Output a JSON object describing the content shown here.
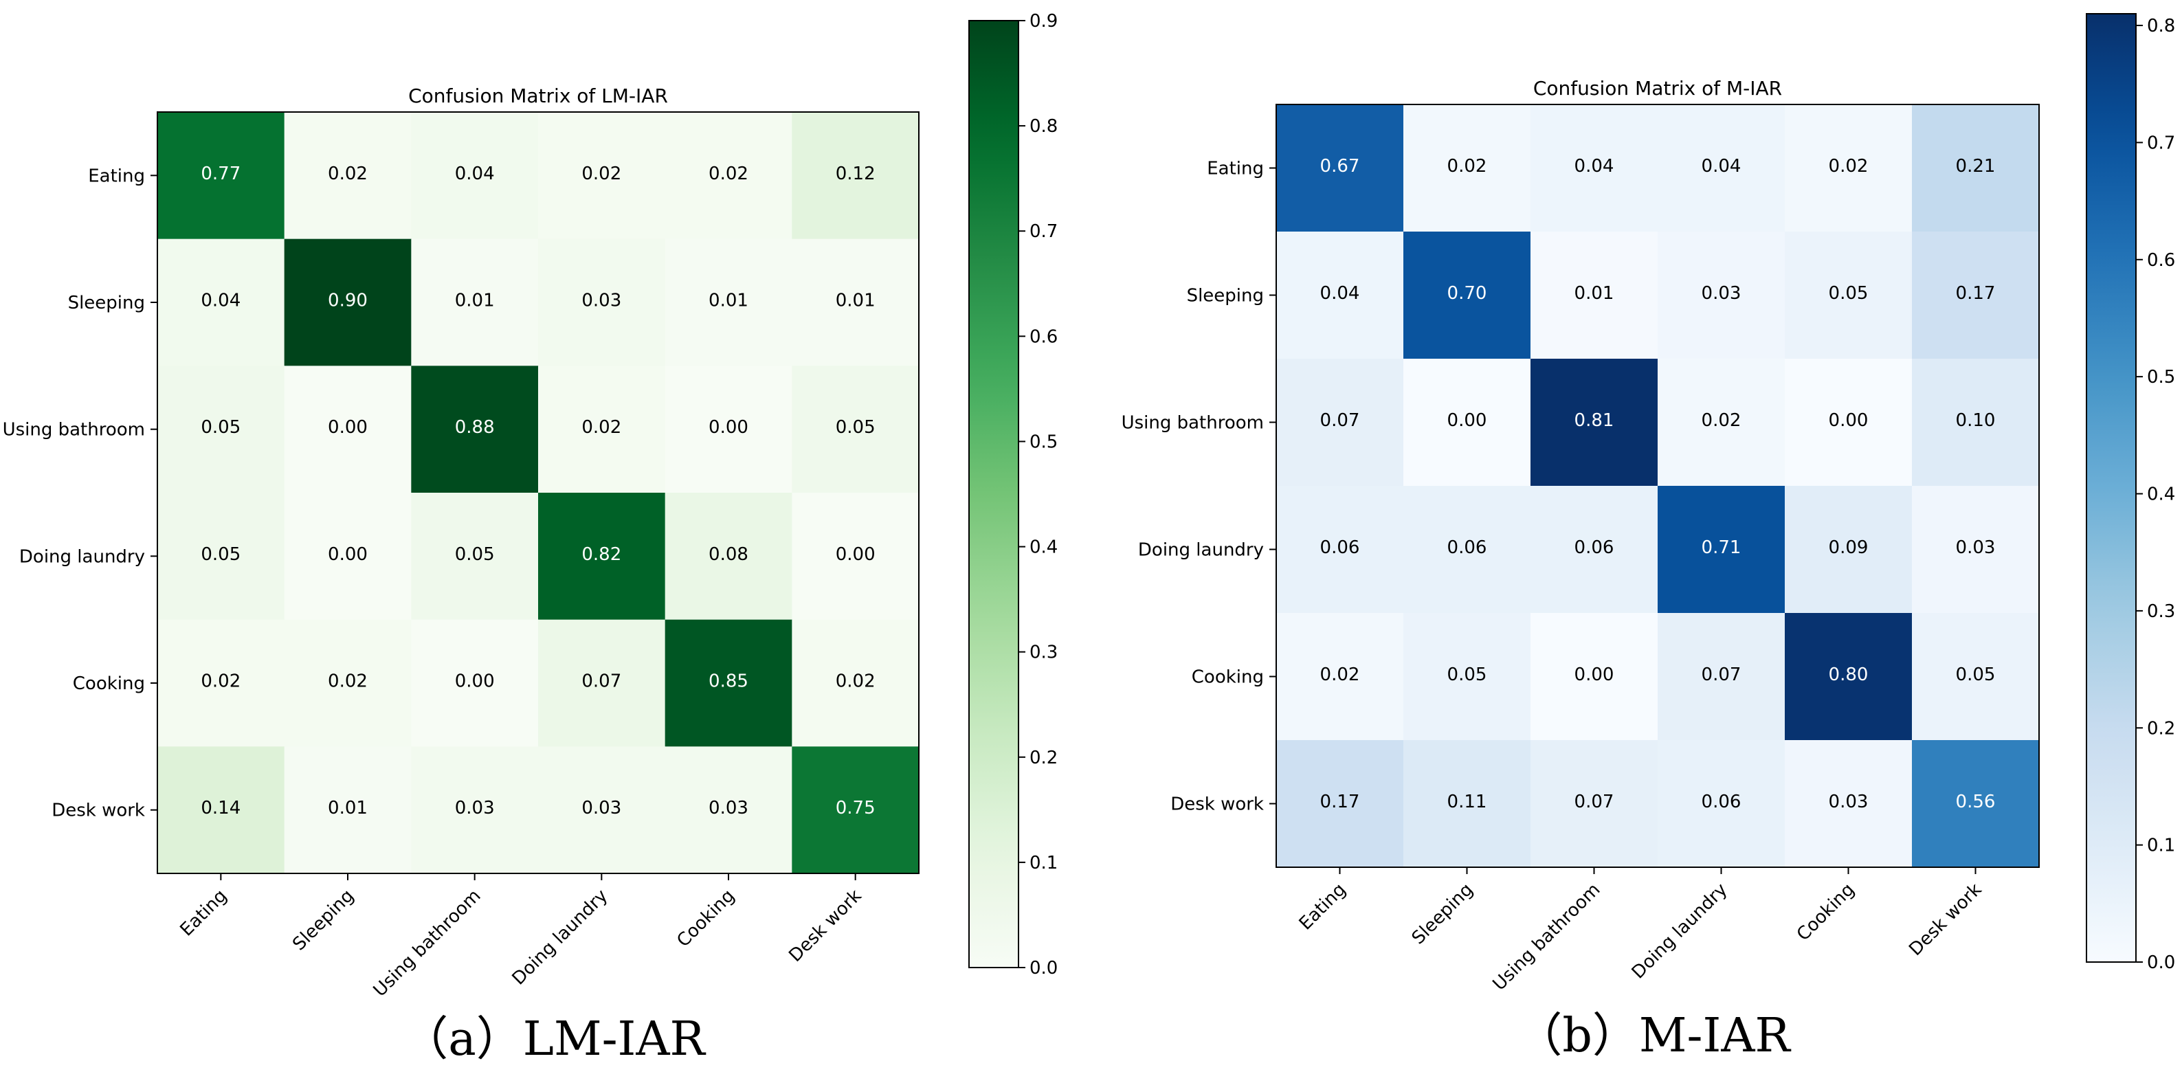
{
  "chart_data": [
    {
      "type": "heatmap",
      "id": "lm",
      "title": "Confusion Matrix of LM-IAR",
      "caption": "（a）LM-IAR",
      "colormap": "Greens",
      "row_labels": [
        "Eating",
        "Sleeping",
        "Using bathroom",
        "Doing laundry",
        "Cooking",
        "Desk work"
      ],
      "col_labels": [
        "Eating",
        "Sleeping",
        "Using bathroom",
        "Doing laundry",
        "Cooking",
        "Desk work"
      ],
      "values": [
        [
          0.77,
          0.02,
          0.04,
          0.02,
          0.02,
          0.12
        ],
        [
          0.04,
          0.9,
          0.01,
          0.03,
          0.01,
          0.01
        ],
        [
          0.05,
          0.0,
          0.88,
          0.02,
          0.0,
          0.05
        ],
        [
          0.05,
          0.0,
          0.05,
          0.82,
          0.08,
          0.0
        ],
        [
          0.02,
          0.02,
          0.0,
          0.07,
          0.85,
          0.02
        ],
        [
          0.14,
          0.01,
          0.03,
          0.03,
          0.03,
          0.75
        ]
      ],
      "vmin": 0.0,
      "vmax": 0.9,
      "colorbar_ticks": [
        "0.0",
        "0.1",
        "0.2",
        "0.3",
        "0.4",
        "0.5",
        "0.6",
        "0.7",
        "0.8",
        "0.9"
      ]
    },
    {
      "type": "heatmap",
      "id": "m",
      "title": "Confusion Matrix of M-IAR",
      "caption": "（b）M-IAR",
      "colormap": "Blues",
      "row_labels": [
        "Eating",
        "Sleeping",
        "Using bathroom",
        "Doing laundry",
        "Cooking",
        "Desk work"
      ],
      "col_labels": [
        "Eating",
        "Sleeping",
        "Using bathroom",
        "Doing laundry",
        "Cooking",
        "Desk work"
      ],
      "values": [
        [
          0.67,
          0.02,
          0.04,
          0.04,
          0.02,
          0.21
        ],
        [
          0.04,
          0.7,
          0.01,
          0.03,
          0.05,
          0.17
        ],
        [
          0.07,
          0.0,
          0.81,
          0.02,
          0.0,
          0.1
        ],
        [
          0.06,
          0.06,
          0.06,
          0.71,
          0.09,
          0.03
        ],
        [
          0.02,
          0.05,
          0.0,
          0.07,
          0.8,
          0.05
        ],
        [
          0.17,
          0.11,
          0.07,
          0.06,
          0.03,
          0.56
        ]
      ],
      "vmin": 0.0,
      "vmax": 0.81,
      "colorbar_ticks": [
        "0.0",
        "0.1",
        "0.2",
        "0.3",
        "0.4",
        "0.5",
        "0.6",
        "0.7",
        "0.8"
      ]
    }
  ]
}
